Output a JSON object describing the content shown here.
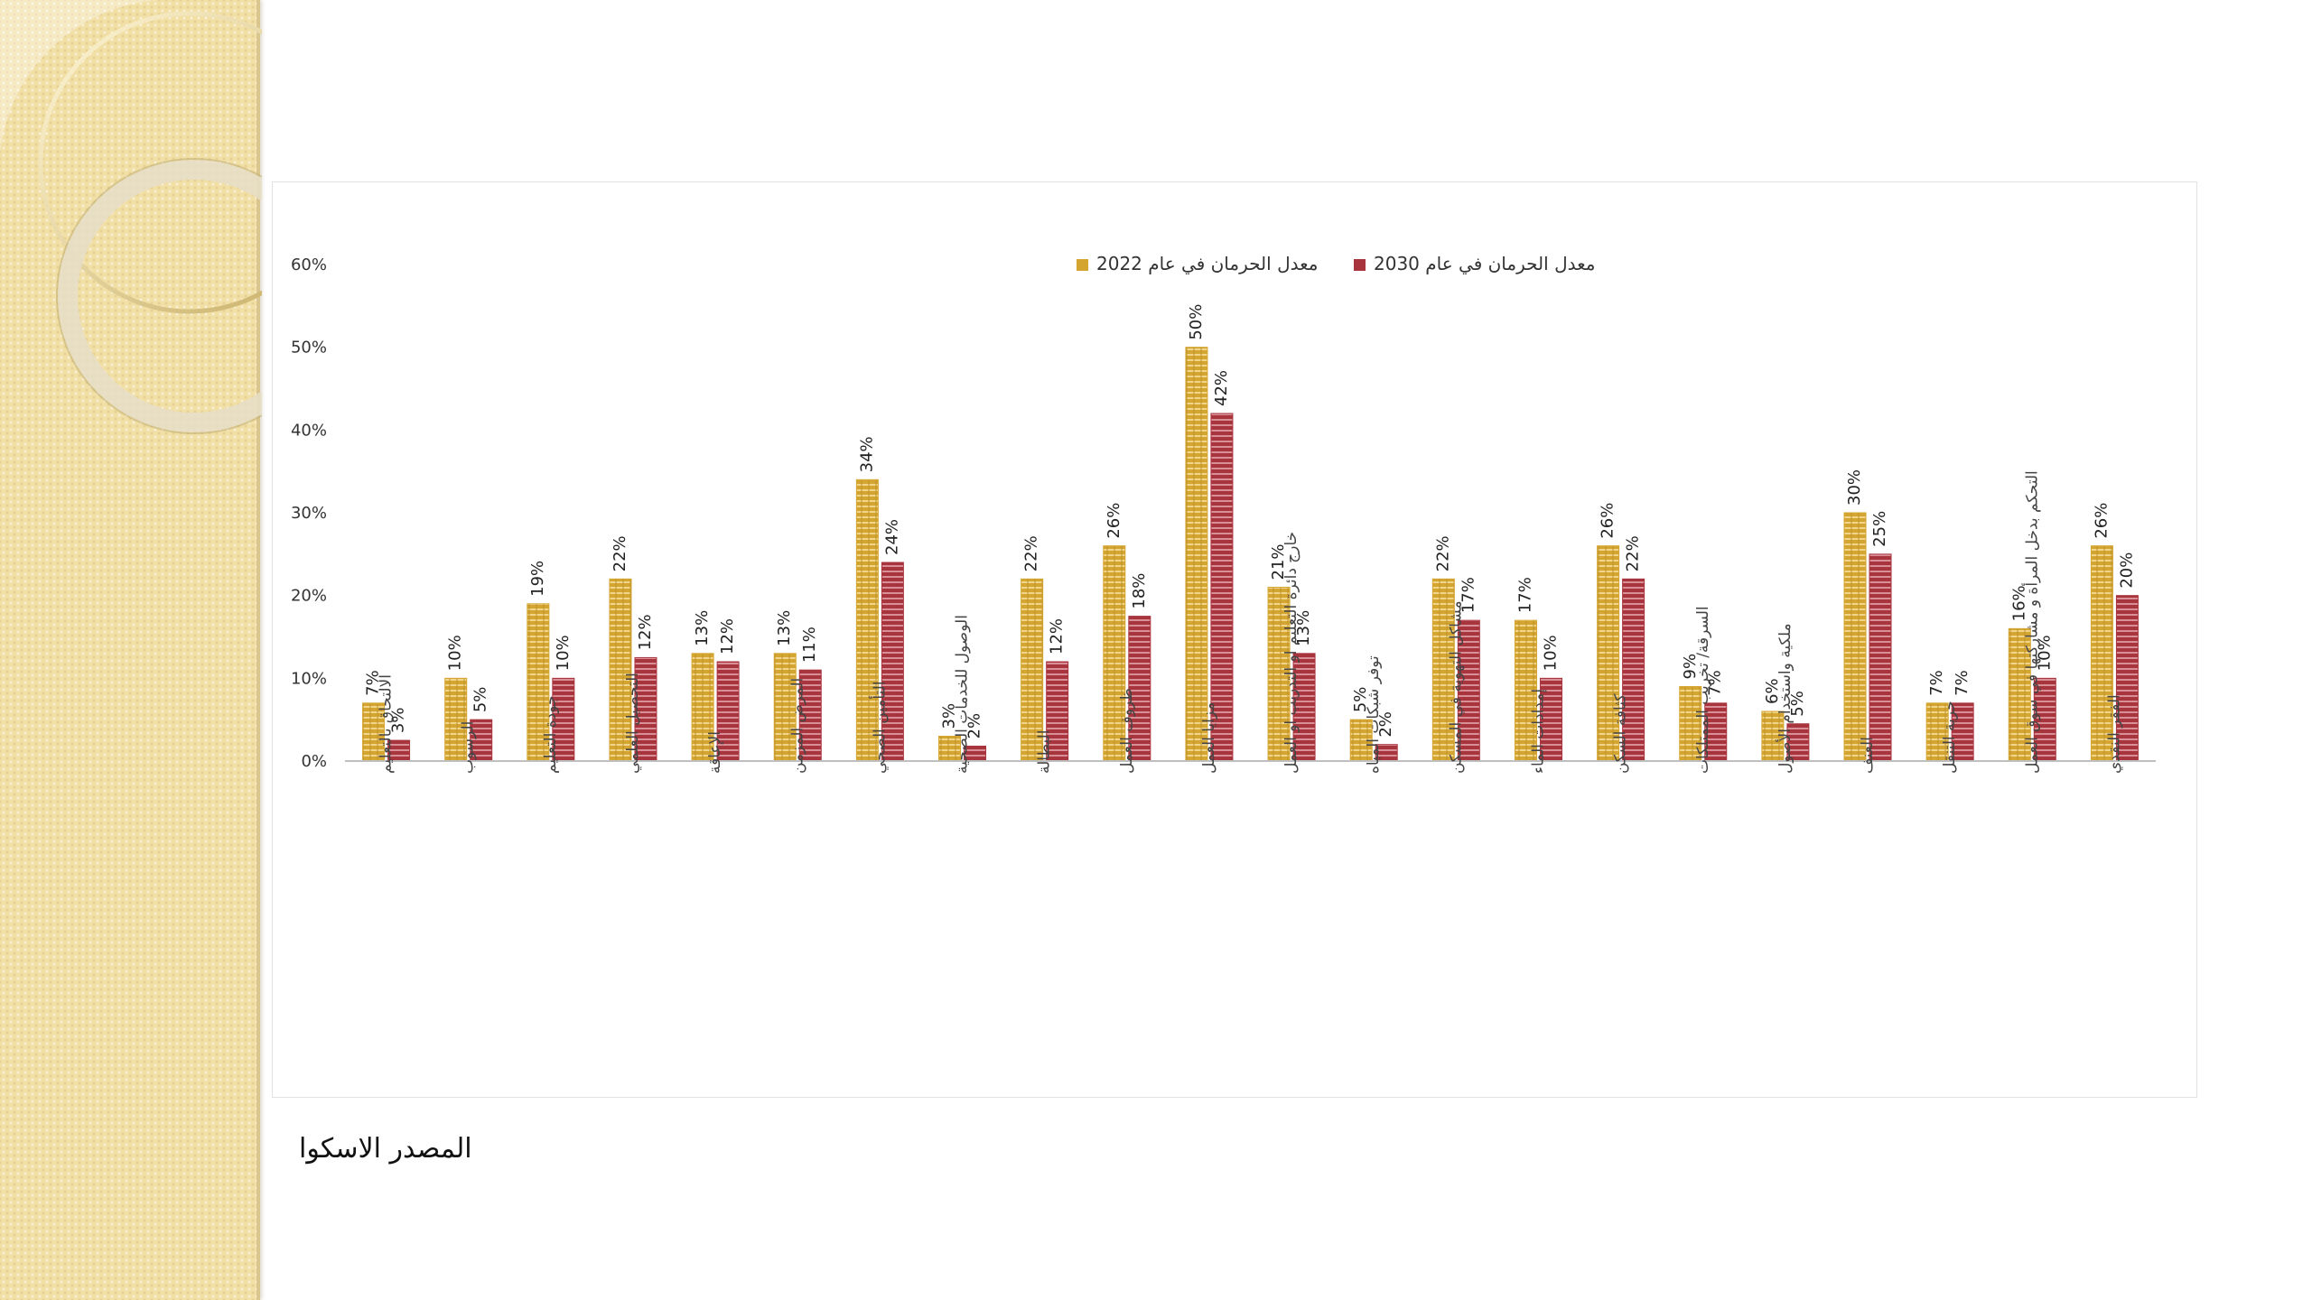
{
  "source_text": "المصدر الاسكوا",
  "colors": {
    "series_2022": "#d4a531",
    "series_2030": "#a8343e",
    "axis_text": "#333333",
    "sidebar": "#f1dfa6"
  },
  "chart_data": {
    "type": "bar",
    "ylim": [
      0,
      0.6
    ],
    "yticks": [
      "0%",
      "10%",
      "20%",
      "30%",
      "40%",
      "50%",
      "60%"
    ],
    "legend_position": "top",
    "grid": false,
    "categories": [
      "الالتحاق بالتعليم",
      "الرسوب",
      "جودة التعليم",
      "التحصيل العلمي",
      "الإعاقة",
      "المرض المزمن",
      "التأمين الصحي",
      "الوصول للخدمات الصحية",
      "البطالة",
      "ظروف العمل",
      "مزايا العمل",
      "خارج دائرة التعليم او التدريب او العمل",
      "توفر شبكات المياه",
      "مشاكل التهوية في المسكن",
      "إمدادات الماء",
      "كثافة السكن",
      "السرقة/ تخريب الممتلكات",
      "ملكية واستخدام الأصول",
      "العنف",
      "حرية التنقل",
      "التحكم بدخل المرأة و مشاركتها في سوق العمل",
      "الفقر النقدي"
    ],
    "series": [
      {
        "name": "معدل الحرمان في عام 2022",
        "values": [
          0.07,
          0.1,
          0.19,
          0.22,
          0.13,
          0.13,
          0.34,
          0.03,
          0.22,
          0.26,
          0.5,
          0.21,
          0.05,
          0.22,
          0.17,
          0.26,
          0.09,
          0.06,
          0.3,
          0.07,
          0.16,
          0.26
        ],
        "labels": [
          "7%",
          "10%",
          "19%",
          "22%",
          "13%",
          "13%",
          "34%",
          "3%",
          "22%",
          "26%",
          "50%",
          "21%",
          "5%",
          "22%",
          "17%",
          "26%",
          "9%",
          "6%",
          "30%",
          "7%",
          "16%",
          "26%"
        ]
      },
      {
        "name": "معدل الحرمان في عام 2030",
        "values": [
          0.025,
          0.05,
          0.1,
          0.125,
          0.12,
          0.11,
          0.24,
          0.018,
          0.12,
          0.175,
          0.42,
          0.13,
          0.02,
          0.17,
          0.1,
          0.22,
          0.07,
          0.045,
          0.25,
          0.07,
          0.1,
          0.2
        ],
        "labels": [
          "3%",
          "5%",
          "10%",
          "12%",
          "12%",
          "11%",
          "24%",
          "2%",
          "12%",
          "18%",
          "42%",
          "13%",
          "2%",
          "17%",
          "10%",
          "22%",
          "7%",
          "5%",
          "25%",
          "7%",
          "10%",
          "20%"
        ]
      }
    ]
  }
}
